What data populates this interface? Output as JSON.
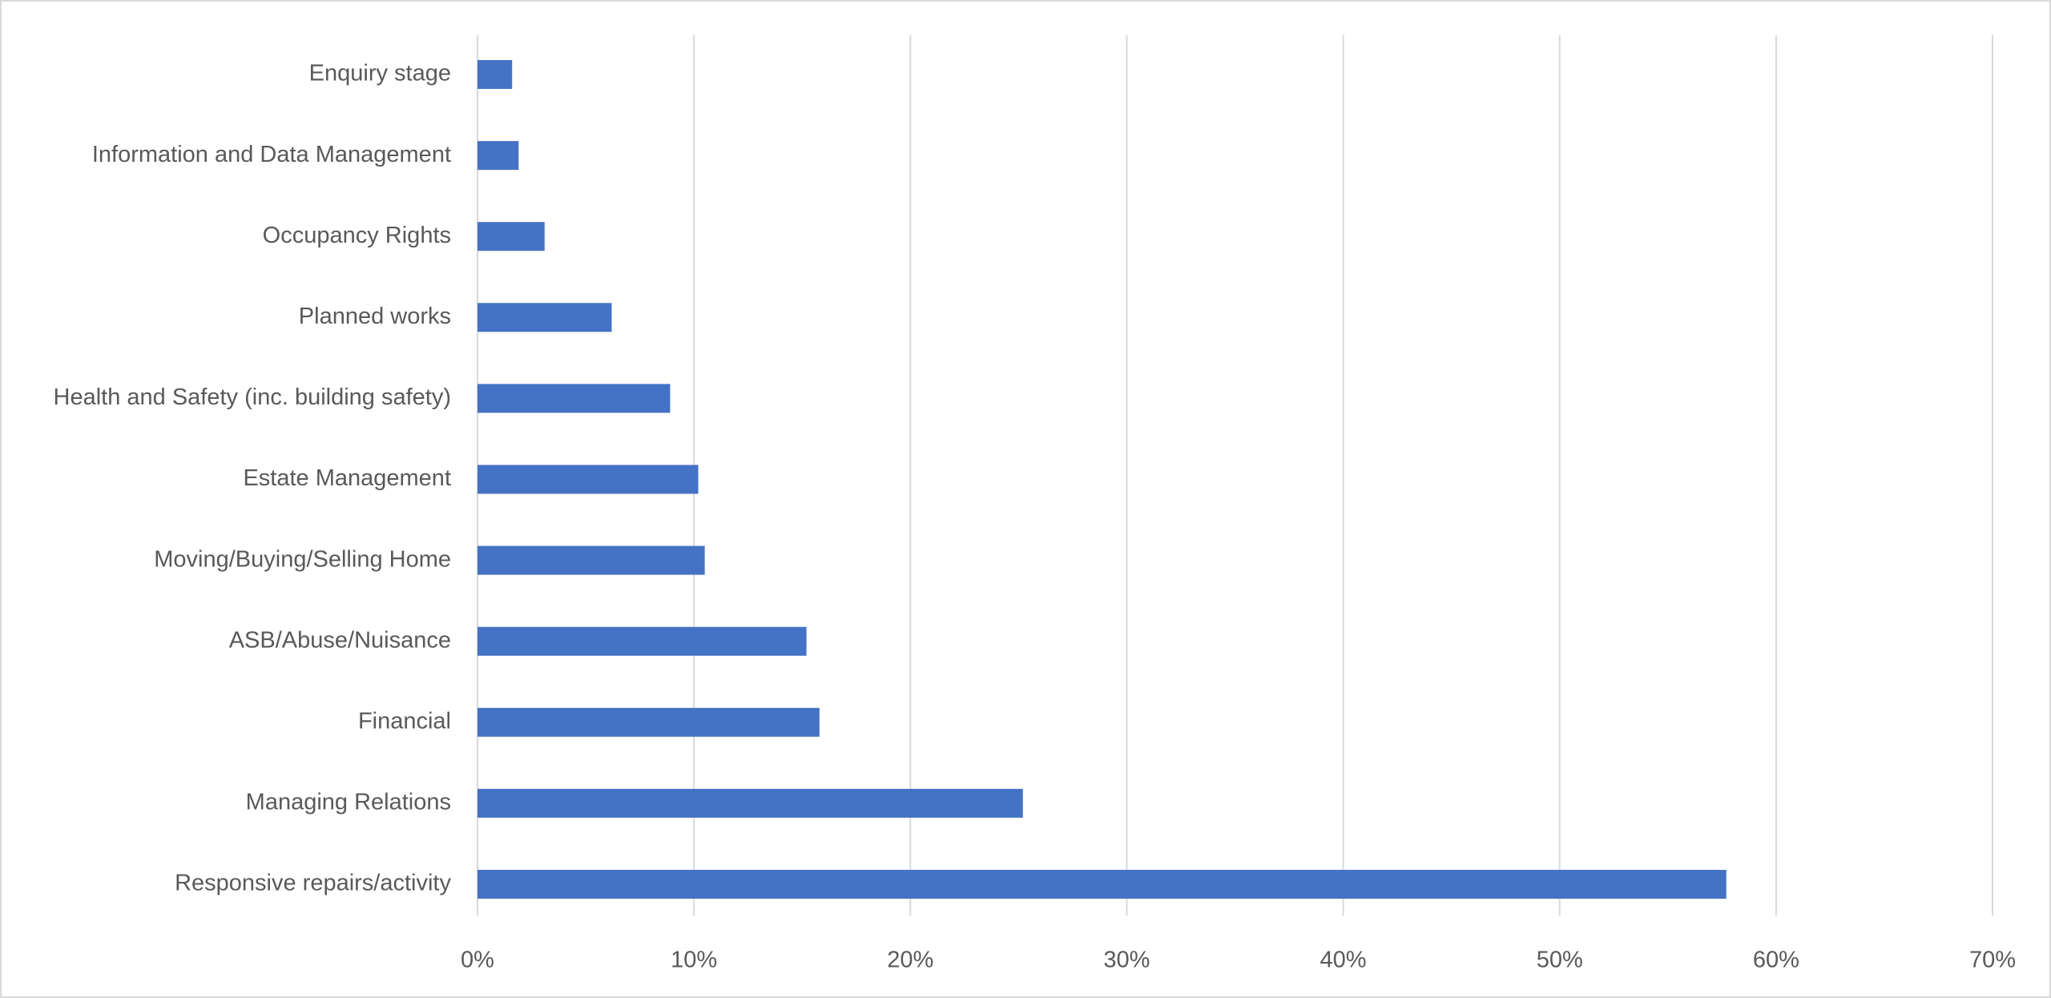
{
  "chart_data": {
    "type": "barh",
    "categories": [
      "Enquiry stage",
      "Information and Data Management",
      "Occupancy Rights",
      "Planned works",
      "Health and Safety (inc. building safety)",
      "Estate Management",
      "Moving/Buying/Selling Home",
      "ASB/Abuse/Nuisance",
      "Financial",
      "Managing Relations",
      "Responsive repairs/activity"
    ],
    "values": [
      1.6,
      1.9,
      3.1,
      6.2,
      8.9,
      10.2,
      10.5,
      15.2,
      15.8,
      25.2,
      57.7
    ],
    "color": "#4472c4",
    "xlim": [
      0,
      70
    ],
    "xticks": [
      {
        "value": 0,
        "label": "0%"
      },
      {
        "value": 10,
        "label": "10%"
      },
      {
        "value": 20,
        "label": "20%"
      },
      {
        "value": 30,
        "label": "30%"
      },
      {
        "value": 40,
        "label": "40%"
      },
      {
        "value": 50,
        "label": "50%"
      },
      {
        "value": 60,
        "label": "60%"
      },
      {
        "value": 70,
        "label": "70%"
      }
    ],
    "grid": true
  }
}
